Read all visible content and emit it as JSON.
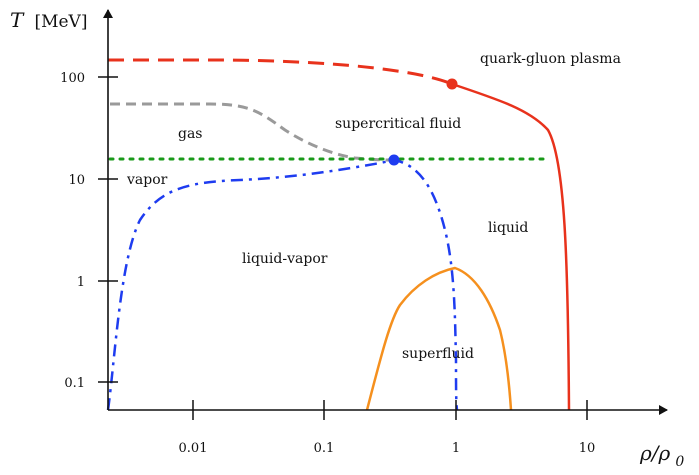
{
  "axes": {
    "x_title": "ρ/ρ",
    "x_title_sub": "0",
    "y_title": "T",
    "y_unit": "[MeV]",
    "x_ticks": [
      {
        "value": 0.01,
        "label": "0.01"
      },
      {
        "value": 0.1,
        "label": "0.1"
      },
      {
        "value": 1,
        "label": "1"
      },
      {
        "value": 10,
        "label": "10"
      }
    ],
    "y_ticks": [
      {
        "value": 0.1,
        "label": "0.1"
      },
      {
        "value": 1,
        "label": "1"
      },
      {
        "value": 10,
        "label": "10"
      },
      {
        "value": 100,
        "label": "100"
      }
    ]
  },
  "regions": {
    "qgp": "quark-gluon plasma",
    "supercritical": "supercritical fluid",
    "gas": "gas",
    "vapor": "vapor",
    "liquid": "liquid",
    "liquid_vapor": "liquid-vapor",
    "superfluid": "superfluid"
  },
  "colors": {
    "qgp_line": "#e8321c",
    "gas_line": "#9a9a9a",
    "green_line": "#1a9a1a",
    "blue_line": "#1e3cf0",
    "orange_line": "#f5901e",
    "axis": "#111111"
  }
}
